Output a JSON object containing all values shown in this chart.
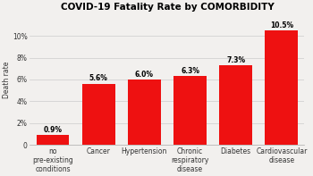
{
  "title": "COVID-19 Fatality Rate by COMORBIDITY",
  "ylabel": "Death rate",
  "categories": [
    "no\npre-existing\nconditions",
    "Cancer",
    "Hypertension",
    "Chronic\nrespiratory\ndisease",
    "Diabetes",
    "Cardiovascular\ndisease"
  ],
  "values": [
    0.9,
    5.6,
    6.0,
    6.3,
    7.3,
    10.5
  ],
  "labels": [
    "0.9%",
    "5.6%",
    "6.0%",
    "6.3%",
    "7.3%",
    "10.5%"
  ],
  "bar_color": "#ee1111",
  "ylim": [
    0,
    12
  ],
  "yticks": [
    0,
    2,
    4,
    6,
    8,
    10
  ],
  "ytick_labels": [
    "0",
    "2%",
    "4%",
    "6%",
    "8%",
    "10%"
  ],
  "background_color": "#f2f0ee",
  "title_fontsize": 7.5,
  "ylabel_fontsize": 5.5,
  "label_fontsize": 5.5,
  "tick_fontsize": 5.5,
  "bar_width": 0.72
}
